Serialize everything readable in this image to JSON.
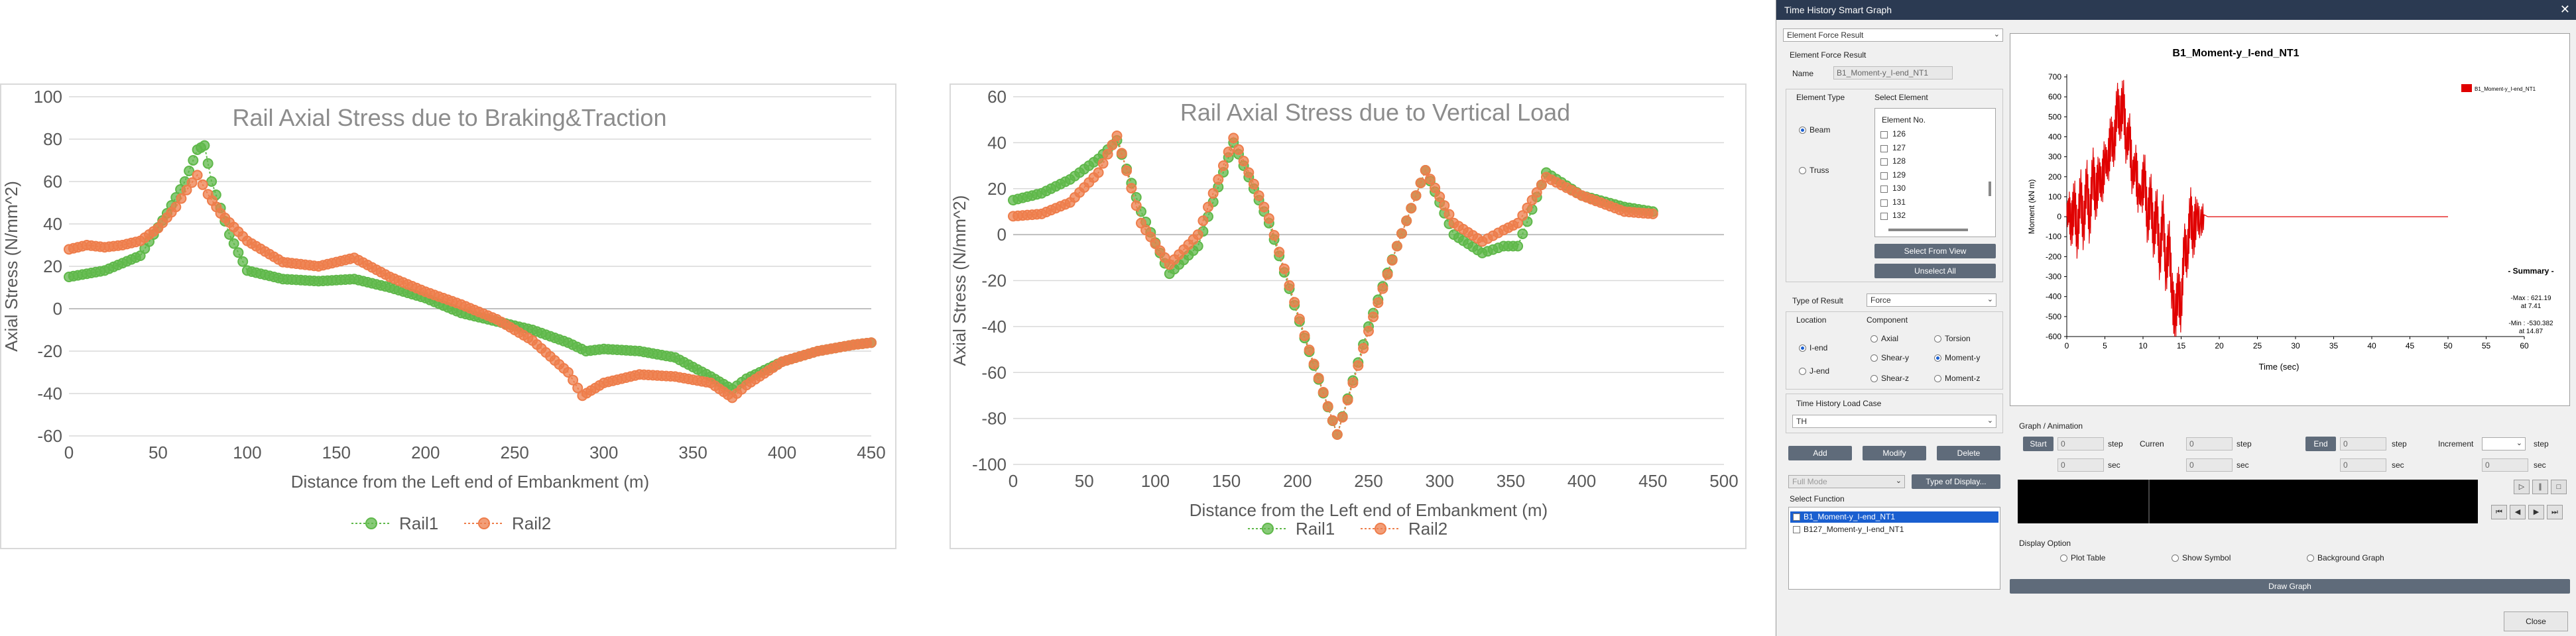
{
  "chart1": {
    "title": "Rail  Axial Stress due to Braking&Traction",
    "xlabel": "Distance from the Left end of Embankment (m)",
    "ylabel": "Axial Stress (N/mm^2)",
    "xticks": [
      "0",
      "50",
      "100",
      "150",
      "200",
      "250",
      "300",
      "350",
      "400",
      "450"
    ],
    "yticks": [
      "100",
      "80",
      "60",
      "40",
      "20",
      "0",
      "-20",
      "-40",
      "-60"
    ],
    "legend": [
      "Rail1",
      "Rail2"
    ]
  },
  "chart2": {
    "title": "Rail Axial Stress due to Vertical Load",
    "xlabel": "Distance from the Left end of Embankment (m)",
    "ylabel": "Axial Stress (N/mm^2)",
    "xticks": [
      "0",
      "50",
      "100",
      "150",
      "200",
      "250",
      "300",
      "350",
      "400",
      "450",
      "500"
    ],
    "yticks": [
      "60",
      "40",
      "20",
      "0",
      "-20",
      "-40",
      "-60",
      "-80",
      "-100"
    ],
    "legend": [
      "Rail1",
      "Rail2"
    ]
  },
  "chart_data": [
    {
      "type": "line",
      "title": "Rail  Axial Stress due to Braking&Traction",
      "xlabel": "Distance from the Left end of Embankment (m)",
      "ylabel": "Axial Stress (N/mm^2)",
      "xlim": [
        0,
        450
      ],
      "ylim": [
        -60,
        100
      ],
      "grid": true,
      "legend": "bottom",
      "series": [
        {
          "name": "Rail1",
          "color": "#5fb84a",
          "x": [
            0,
            20,
            40,
            55,
            65,
            72,
            76,
            80,
            90,
            100,
            120,
            140,
            160,
            180,
            200,
            220,
            240,
            260,
            280,
            290,
            300,
            320,
            340,
            360,
            372,
            380,
            400,
            420,
            440,
            450
          ],
          "y": [
            15,
            18,
            25,
            45,
            60,
            75,
            77,
            60,
            35,
            18,
            14,
            13,
            14,
            10,
            5,
            -2,
            -6,
            -10,
            -16,
            -20,
            -19,
            -20,
            -23,
            -32,
            -38,
            -33,
            -25,
            -20,
            -17,
            -16
          ]
        },
        {
          "name": "Rail2",
          "color": "#ee7d4b",
          "x": [
            0,
            10,
            20,
            30,
            40,
            50,
            60,
            66,
            72,
            78,
            85,
            100,
            120,
            140,
            160,
            180,
            200,
            220,
            240,
            260,
            280,
            288,
            300,
            320,
            340,
            360,
            372,
            380,
            400,
            420,
            440,
            450
          ],
          "y": [
            28,
            30,
            29,
            30,
            32,
            38,
            48,
            56,
            63,
            54,
            45,
            32,
            22,
            20,
            24,
            15,
            8,
            2,
            -5,
            -15,
            -30,
            -41,
            -35,
            -31,
            -32,
            -35,
            -42,
            -36,
            -25,
            -20,
            -17,
            -16
          ]
        }
      ]
    },
    {
      "type": "line",
      "title": "Rail Axial Stress due to Vertical Load",
      "xlabel": "Distance from the Left end of Embankment (m)",
      "ylabel": "Axial Stress (N/mm^2)",
      "xlim": [
        0,
        500
      ],
      "ylim": [
        -100,
        60
      ],
      "grid": true,
      "legend": "bottom",
      "series": [
        {
          "name": "Rail1",
          "color": "#5fb84a",
          "x": [
            0,
            20,
            40,
            60,
            73,
            90,
            110,
            130,
            155,
            180,
            205,
            228,
            250,
            270,
            290,
            310,
            330,
            345,
            355,
            375,
            400,
            430,
            450
          ],
          "y": [
            15,
            18,
            24,
            33,
            41,
            10,
            -17,
            -5,
            40,
            5,
            -45,
            -87,
            -40,
            -5,
            28,
            0,
            -8,
            -5,
            -5,
            27,
            17,
            12,
            10
          ]
        },
        {
          "name": "Rail2",
          "color": "#ee7d4b",
          "x": [
            0,
            20,
            40,
            60,
            73,
            90,
            110,
            130,
            155,
            180,
            205,
            228,
            250,
            270,
            290,
            310,
            330,
            345,
            355,
            375,
            400,
            430,
            450
          ],
          "y": [
            8,
            9,
            14,
            27,
            43,
            5,
            -13,
            0,
            42,
            7,
            -44,
            -87,
            -42,
            -5,
            28,
            5,
            -3,
            2,
            5,
            25,
            17,
            10,
            9
          ]
        }
      ]
    },
    {
      "type": "line",
      "title": "B1_Moment-y_I-end_NT1",
      "xlabel": "Time (sec)",
      "ylabel": "Moment (kN m)",
      "xlim": [
        0,
        60
      ],
      "ylim": [
        -600,
        700
      ],
      "series": [
        {
          "name": "B1_Moment-y_I-end_NT1",
          "color": "#e00000",
          "x": [
            0,
            0.3,
            0.6,
            1,
            1.4,
            1.8,
            2.2,
            2.6,
            3,
            3.4,
            3.8,
            4.2,
            4.6,
            5,
            5.4,
            5.8,
            6.2,
            6.6,
            7,
            7.4,
            7.8,
            8.2,
            8.6,
            9,
            9.4,
            9.8,
            10.2,
            10.6,
            11,
            11.4,
            11.8,
            12.2,
            12.6,
            13,
            13.4,
            13.8,
            14.2,
            14.6,
            15,
            15.4,
            15.8,
            16.2,
            16.6,
            17,
            17.5,
            18,
            18.5,
            19,
            20,
            30,
            40,
            50
          ],
          "y": [
            0,
            40,
            -60,
            90,
            -120,
            150,
            -80,
            200,
            -50,
            250,
            80,
            220,
            150,
            300,
            250,
            420,
            330,
            580,
            470,
            600,
            350,
            430,
            200,
            260,
            120,
            100,
            230,
            -50,
            130,
            -120,
            60,
            -240,
            40,
            -300,
            -100,
            -380,
            -530,
            -350,
            -480,
            -120,
            -220,
            50,
            -110,
            20,
            -40,
            10,
            0,
            0,
            0,
            0,
            0,
            0
          ]
        }
      ]
    }
  ],
  "dialog": {
    "title": "Time History Smart Graph",
    "top_select": "Element Force Result",
    "section_title": "Element Force Result",
    "name_label": "Name",
    "name_value": "B1_Moment-y_I-end_NT1",
    "element_type_label": "Element Type",
    "select_element_label": "Select Element",
    "beam": "Beam",
    "truss": "Truss",
    "element_header": "Element No.",
    "elements": [
      "126",
      "127",
      "128",
      "129",
      "130",
      "131",
      "132"
    ],
    "select_from_view": "Select From View",
    "unselect_all": "Unselect All",
    "type_of_result_label": "Type of Result",
    "type_of_result_value": "Force",
    "location_label": "Location",
    "component_label": "Component",
    "i_end": "I-end",
    "j_end": "J-end",
    "axial": "Axial",
    "torsion": "Torsion",
    "shear_y": "Shear-y",
    "moment_y": "Moment-y",
    "shear_z": "Shear-z",
    "moment_z": "Moment-z",
    "load_case_label": "Time History Load Case",
    "load_case_value": "TH",
    "add": "Add",
    "modify": "Modify",
    "delete": "Delete",
    "full_mode": "Full Mode",
    "type_of_display": "Type of Display...",
    "select_function_label": "Select Function",
    "functions": [
      "B1_Moment-y_I-end_NT1",
      "B127_Moment-y_I-end_NT1"
    ],
    "graph": {
      "title": "B1_Moment-y_I-end_NT1",
      "ylabel": "Moment (kN m)",
      "xlabel": "Time (sec)",
      "yticks": [
        "700",
        "600",
        "500",
        "400",
        "300",
        "200",
        "100",
        "0",
        "-100",
        "-200",
        "-300",
        "-400",
        "-500",
        "-600"
      ],
      "xticks": [
        "0",
        "5",
        "10",
        "15",
        "20",
        "25",
        "30",
        "35",
        "40",
        "45",
        "50",
        "55",
        "60"
      ],
      "legend": "B1_Moment-y_I-end_NT1",
      "summary_title": "- Summary -",
      "max_line1": "-Max : 621.19",
      "max_line2": "at 7.41",
      "min_line1": "-Min : -530.382",
      "min_line2": "at 14.87"
    },
    "anim": {
      "label": "Graph / Animation",
      "start": "Start",
      "start_val": "0",
      "step": "step",
      "current": "Curren",
      "current_val": "0",
      "end": "End",
      "end_val": "0",
      "increment": "Increment",
      "sec": "sec",
      "sec_val": "0"
    },
    "display_option": "Display Option",
    "plot_table": "Plot Table",
    "show_symbol": "Show Symbol",
    "background_graph": "Background Graph",
    "draw_graph": "Draw Graph",
    "close": "Close",
    "colors": {
      "title_bar": "#2b3a52",
      "button": "#5f6b7a",
      "series": "#e00000"
    }
  }
}
